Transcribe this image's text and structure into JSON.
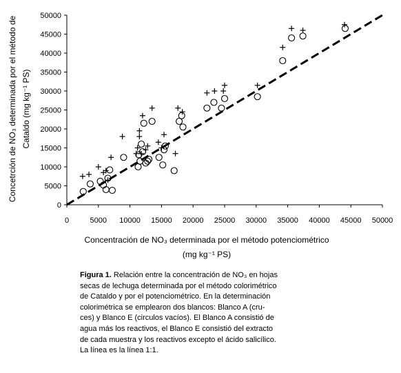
{
  "chart_data": {
    "type": "scatter",
    "xlabel": "Concentración de NO₃ determinada por el método potenciométrico",
    "xlabel_units": "(mg kg⁻¹ PS)",
    "ylabel_line1": "Concetrción de NO₃ determinada por el método de",
    "ylabel_line2": "Cataldo  (mg kg⁻¹ PS)",
    "xlim": [
      0,
      50000
    ],
    "ylim": [
      0,
      50000
    ],
    "x_ticks": [
      "0",
      "5000",
      "10000",
      "15000",
      "20000",
      "25000",
      "30000",
      "35000",
      "40000",
      "45000",
      "50000"
    ],
    "y_ticks": [
      "0",
      "5000",
      "10000",
      "15000",
      "20000",
      "25000",
      "30000",
      "35000",
      "40000",
      "45000",
      "50000"
    ],
    "reference_line": {
      "style": "dashed",
      "from": [
        0,
        0
      ],
      "to": [
        50000,
        50000
      ]
    },
    "series": [
      {
        "marker": "plus",
        "points": [
          [
            2500,
            7500
          ],
          [
            3500,
            8000
          ],
          [
            5000,
            10000
          ],
          [
            5800,
            8500
          ],
          [
            6200,
            9000
          ],
          [
            6500,
            6500
          ],
          [
            7000,
            12500
          ],
          [
            8800,
            18000
          ],
          [
            11000,
            13500
          ],
          [
            11200,
            15000
          ],
          [
            11500,
            18000
          ],
          [
            11500,
            19500
          ],
          [
            11800,
            13500
          ],
          [
            12000,
            23500
          ],
          [
            12500,
            14500
          ],
          [
            12800,
            15500
          ],
          [
            13500,
            25500
          ],
          [
            14500,
            16500
          ],
          [
            15000,
            15000
          ],
          [
            15400,
            18500
          ],
          [
            17200,
            13500
          ],
          [
            17600,
            25500
          ],
          [
            18300,
            24500
          ],
          [
            22200,
            29500
          ],
          [
            23400,
            30000
          ],
          [
            24800,
            30000
          ],
          [
            25000,
            31500
          ],
          [
            30200,
            31500
          ],
          [
            34200,
            41500
          ],
          [
            35600,
            46500
          ],
          [
            37400,
            46000
          ],
          [
            44000,
            47500
          ]
        ]
      },
      {
        "marker": "circle",
        "points": [
          [
            2600,
            3500
          ],
          [
            3700,
            5500
          ],
          [
            5300,
            6200
          ],
          [
            5800,
            5200
          ],
          [
            6200,
            4000
          ],
          [
            6500,
            7000
          ],
          [
            6800,
            9200
          ],
          [
            7200,
            3800
          ],
          [
            9000,
            12500
          ],
          [
            11300,
            10000
          ],
          [
            11400,
            13200
          ],
          [
            11600,
            11500
          ],
          [
            11800,
            16000
          ],
          [
            12000,
            14000
          ],
          [
            12200,
            21500
          ],
          [
            12500,
            11000
          ],
          [
            12800,
            11500
          ],
          [
            13000,
            12000
          ],
          [
            13500,
            22000
          ],
          [
            14600,
            12500
          ],
          [
            15200,
            10500
          ],
          [
            15400,
            14500
          ],
          [
            15600,
            15500
          ],
          [
            17000,
            9000
          ],
          [
            17800,
            22000
          ],
          [
            18200,
            23500
          ],
          [
            18400,
            20500
          ],
          [
            22200,
            25500
          ],
          [
            23300,
            27000
          ],
          [
            24500,
            25500
          ],
          [
            25000,
            28000
          ],
          [
            30200,
            28500
          ],
          [
            34200,
            38000
          ],
          [
            35600,
            44000
          ],
          [
            37400,
            44500
          ],
          [
            44100,
            46500
          ]
        ]
      }
    ]
  },
  "caption": {
    "label": "Figura 1.",
    "lines": [
      " Relación entre la concentración de NO₃ en hojas",
      "secas de lechuga determinada por el método colorimétrico",
      "de Cataldo y por el potenciométrico. En la determinación",
      "colorimétrica se emplearon dos blancos: Blanco A (cru-",
      "ces) y Blanco E (circulos vacíos). El Blanco A consistió de",
      "agua más los reactivos, el Blanco E consistió del extracto",
      "de cada muestra y los reactivos excepto el ácido salicílico.",
      "La línea  es la línea 1:1."
    ]
  }
}
